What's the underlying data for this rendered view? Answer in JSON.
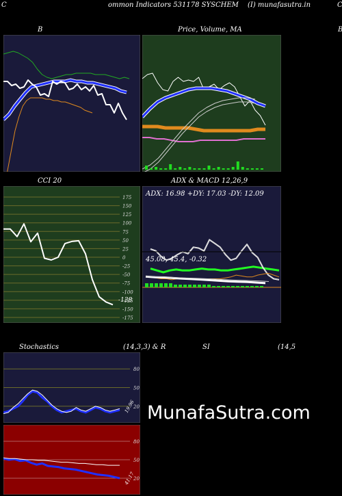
{
  "header": {
    "c_left": "C",
    "indicators_title": "ommon  Indicators 531178 SYSCHEM",
    "site": "(I) munafasutra.in",
    "c_right": "C"
  },
  "panel_titles": {
    "b": "B",
    "price_ma": "Price,  Volume,  MA",
    "cci": "CCI 20",
    "adx_macd": "ADX  & MACD 12,26,9",
    "stochastics": "Stochastics",
    "stoch_params": "(14,3,3) & R",
    "si": "SI",
    "rsi_params": "(14,5",
    "r_right": "B"
  },
  "watermark": "MunafaSutra.com",
  "colors": {
    "navy_panel": "#1a1a3a",
    "green_panel": "#1e3d1e",
    "red_panel": "#8b0000",
    "olive_grid": "#6b6b2a",
    "upper_band": "#22aa22",
    "lower_band": "#e08a1e",
    "blue_ma": "#2030ff"
  },
  "chart_data": [
    {
      "id": "bollinger",
      "type": "line",
      "title": "B",
      "ylim": [
        0,
        100
      ],
      "series": [
        {
          "color": "#22aa22",
          "values": [
            86,
            87,
            88,
            87,
            85,
            83,
            80,
            75,
            71,
            69,
            68,
            69,
            70,
            71,
            71,
            72,
            72,
            72,
            72,
            71,
            71,
            71,
            70,
            69,
            68,
            69,
            68
          ]
        },
        {
          "color": "#2030ff",
          "values": [
            38,
            42,
            48,
            53,
            58,
            62,
            63,
            64,
            65,
            66,
            66,
            66,
            67,
            66,
            66,
            65,
            65,
            64,
            63,
            62,
            61,
            59,
            58
          ]
        },
        {
          "color": "#ffffff",
          "values": [
            66,
            66,
            63,
            64,
            61,
            62,
            67,
            64,
            62,
            56,
            57,
            55,
            66,
            64,
            66,
            65,
            60,
            61,
            64,
            60,
            62,
            59,
            63,
            56,
            57,
            49,
            49,
            43,
            50,
            43,
            38
          ]
        },
        {
          "color": "#e08a1e",
          "values": [
            -10,
            0,
            15,
            30,
            40,
            48,
            52,
            54,
            54,
            54,
            54,
            53,
            53,
            52,
            52,
            51,
            51,
            50,
            49,
            48,
            47,
            45,
            44,
            43
          ]
        }
      ]
    },
    {
      "id": "price_volume_ma",
      "type": "line",
      "title": "Price,  Volume,  MA",
      "ylim": [
        0,
        100
      ],
      "series": [
        {
          "color": "#ffffff",
          "values": [
            68,
            71,
            72,
            65,
            60,
            59,
            66,
            69,
            66,
            67,
            66,
            69,
            60,
            62,
            64,
            60,
            63,
            65,
            62,
            55,
            48,
            52,
            45,
            41,
            34
          ]
        },
        {
          "color": "#2030ff",
          "values": [
            40,
            46,
            51,
            54,
            56,
            58,
            60,
            61,
            61,
            61,
            60,
            59,
            57,
            55,
            53,
            50,
            48
          ]
        },
        {
          "color": "#e08a1e",
          "values": [
            33,
            33,
            33,
            32,
            32,
            32,
            32,
            31,
            30,
            30,
            30,
            30,
            30,
            30,
            30,
            31,
            31
          ]
        },
        {
          "color": "#e070d0",
          "values": [
            25,
            25,
            24,
            24,
            23,
            22,
            22,
            22,
            23,
            23,
            23,
            23,
            23,
            23,
            24,
            24,
            24,
            24
          ]
        },
        {
          "color": "#cccccc",
          "values": [
            2,
            5,
            10,
            17,
            24,
            31,
            37,
            43,
            47,
            50,
            52,
            53,
            54,
            54,
            53
          ]
        }
      ],
      "volume": [
        3,
        1,
        2,
        1,
        1,
        4,
        1,
        2,
        1,
        2,
        1,
        1,
        1,
        3,
        1,
        2,
        1,
        1,
        2,
        6,
        2,
        1,
        1,
        1,
        1
      ]
    },
    {
      "id": "cci",
      "type": "line",
      "title": "CCI 20",
      "ylim": [
        -175,
        175
      ],
      "ticks": [
        "175",
        "150",
        "125",
        "100",
        "75",
        "50",
        "25",
        "0",
        "-25",
        "-50",
        "-75",
        "-100",
        "-125",
        "-150",
        "-175"
      ],
      "values": [
        82,
        82,
        60,
        97,
        45,
        70,
        -3,
        -8,
        0,
        40,
        46,
        48,
        10,
        -65,
        -115,
        -130,
        -138
      ],
      "last_label": "-138"
    },
    {
      "id": "adx",
      "type": "line",
      "title": "ADX  & MACD 12,26,9",
      "label": "ADX: 16.98  +DY: 17.03 -DY: 12.09",
      "ylim": [
        0,
        100
      ],
      "series": [
        {
          "color": "#22ff22",
          "values": [
            29,
            27,
            25,
            27,
            28,
            27,
            27,
            28,
            29,
            28,
            28,
            27,
            27,
            28,
            29,
            30,
            31,
            30,
            29,
            28,
            27
          ]
        },
        {
          "color": "#cccccc",
          "values": [
            50,
            48,
            42,
            38,
            40,
            44,
            47,
            45,
            52,
            51,
            48,
            60,
            56,
            52,
            44,
            38,
            40,
            48,
            55,
            46,
            41,
            30,
            22,
            18,
            17
          ]
        },
        {
          "color": "#e08a1e",
          "values": [
            20,
            19,
            18,
            18,
            17,
            18,
            19,
            18,
            17,
            17,
            17,
            18,
            18,
            18,
            19,
            20,
            22,
            21,
            20,
            20,
            22,
            23,
            24,
            22,
            20
          ]
        }
      ]
    },
    {
      "id": "macd",
      "type": "line",
      "label": "45.08,  45.4,  -0.32",
      "ylim": [
        0,
        100
      ],
      "series": [
        {
          "color": "#ffffff",
          "values": [
            90,
            85,
            84,
            80,
            76,
            73,
            70,
            66,
            62,
            58,
            56,
            54,
            50,
            46
          ]
        },
        {
          "color": "#cccccc",
          "values": [
            92,
            90,
            88,
            85,
            82,
            80,
            78,
            76,
            74,
            71,
            68,
            66,
            64,
            62,
            60,
            57
          ]
        }
      ],
      "hist": [
        3,
        3,
        3,
        3,
        3,
        3,
        2,
        2,
        2,
        2,
        2,
        2,
        2,
        2,
        1,
        1,
        1,
        1,
        1,
        1,
        1,
        1,
        1,
        1,
        1
      ]
    },
    {
      "id": "stochastics",
      "type": "line",
      "title": "Stochastics",
      "ylim": [
        0,
        100
      ],
      "ticks": [
        "80",
        "50",
        "20"
      ],
      "last_label": "19.96",
      "series": [
        {
          "color": "#2030ff",
          "values": [
            10,
            12,
            16,
            20,
            28,
            38,
            44,
            42,
            34,
            28,
            20,
            14,
            10,
            12,
            14,
            16,
            12,
            10,
            14,
            18,
            16,
            12,
            10,
            12,
            14
          ]
        },
        {
          "color": "#ffffff",
          "values": [
            8,
            10,
            18,
            24,
            32,
            40,
            46,
            44,
            38,
            30,
            22,
            16,
            12,
            10,
            12,
            18,
            14,
            12,
            16,
            20,
            18,
            14,
            12,
            14,
            16
          ]
        }
      ]
    },
    {
      "id": "rsi",
      "type": "line",
      "ylim": [
        0,
        100
      ],
      "ticks": [
        "80",
        "50",
        "20"
      ],
      "last_label": "41.17",
      "series": [
        {
          "color": "#2030ff",
          "values": [
            52,
            50,
            51,
            48,
            49,
            45,
            42,
            44,
            40,
            39,
            38,
            36,
            35,
            34,
            32,
            30,
            28,
            26,
            25,
            24,
            22,
            20
          ]
        },
        {
          "color": "#ffffff",
          "values": [
            53,
            52,
            52,
            51,
            50,
            50,
            49,
            49,
            48,
            47,
            46,
            46,
            45,
            44,
            44,
            43,
            42,
            42,
            41,
            41,
            41
          ]
        }
      ]
    }
  ]
}
